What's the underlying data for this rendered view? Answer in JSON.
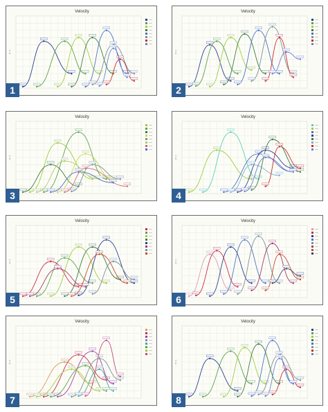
{
  "colors": {
    "badge": "#2f5e92",
    "panel_border": "#6c6c6c",
    "plot_background": "#fbfbf6",
    "grid": "#e5e5dc"
  },
  "charts": [
    {
      "badge": "1",
      "palette": [
        "#2a3f8f",
        "#5aa04a",
        "#9ccc3e",
        "#3b7a3e",
        "#4a6fc2",
        "#7a8f9a",
        "#cc2a2a",
        "#6a7fd0"
      ]
    },
    {
      "badge": "2",
      "palette": [
        "#2a3f8f",
        "#5aa04a",
        "#9ccc3e",
        "#3b7a3e",
        "#4a6fc2",
        "#7a8f9a",
        "#cc2a2a",
        "#6a7fd0"
      ]
    },
    {
      "badge": "3",
      "palette": [
        "#9ccc3e",
        "#5aa04a",
        "#3b7a3e",
        "#c7d94a",
        "#7a8f9a",
        "#b0c96a",
        "#cc6a6a",
        "#4a6fc2"
      ]
    },
    {
      "badge": "4",
      "palette": [
        "#5ad0b0",
        "#9ccc3e",
        "#4a6fc2",
        "#2a3f8f",
        "#3b7a3e",
        "#7ab0d0",
        "#cc2a2a",
        "#6a7fd0"
      ]
    },
    {
      "badge": "5",
      "palette": [
        "#cc2a4a",
        "#5aa04a",
        "#9ccc3e",
        "#3b7a3e",
        "#2a3f8f",
        "#a03a6a",
        "#7a8f9a",
        "#c04a2a"
      ]
    },
    {
      "badge": "6",
      "palette": [
        "#d0a0b0",
        "#cc2a4a",
        "#2a3f8f",
        "#4a6fc2",
        "#7a8f9a",
        "#a03a6a",
        "#c04a2a",
        "#3b3f6a"
      ]
    },
    {
      "badge": "7",
      "palette": [
        "#d0a060",
        "#cc2a4a",
        "#a03aa0",
        "#7a8f9a",
        "#4aa0a0",
        "#5aa04a",
        "#9ccc3e",
        "#c04a7a"
      ]
    },
    {
      "badge": "8",
      "palette": [
        "#2a3f8f",
        "#5aa04a",
        "#9ccc3e",
        "#3b7a3e",
        "#4a6fc2",
        "#7a8f9a",
        "#cc2a2a",
        "#6a7fd0"
      ]
    }
  ],
  "chart_data": [
    {
      "type": "line",
      "title": "Velocity",
      "ylabel": "m / s",
      "ylim": [
        0,
        10
      ],
      "xlim": [
        0,
        18
      ],
      "grid": true,
      "legend_position": "right",
      "series": [
        {
          "values": [
            [
              1,
              0.2
            ],
            [
              4,
              6.5
            ],
            [
              8,
              2
            ]
          ]
        },
        {
          "values": [
            [
              3,
              0.2
            ],
            [
              7,
              6.5
            ],
            [
              10,
              2
            ]
          ]
        },
        {
          "values": [
            [
              6,
              0.2
            ],
            [
              9,
              7
            ],
            [
              12,
              2
            ]
          ]
        },
        {
          "values": [
            [
              8,
              0.2
            ],
            [
              11,
              7
            ],
            [
              14,
              2
            ]
          ]
        },
        {
          "values": [
            [
              10,
              0.2
            ],
            [
              13,
              8
            ],
            [
              16,
              2
            ]
          ]
        },
        {
          "values": [
            [
              11,
              0.5
            ],
            [
              14,
              6
            ],
            [
              17,
              2
            ]
          ]
        },
        {
          "values": [
            [
              13,
              0.5
            ],
            [
              15,
              4
            ],
            [
              17,
              1
            ]
          ]
        },
        {
          "values": [
            [
              12,
              0.3
            ],
            [
              14,
              5.5
            ],
            [
              16,
              1.5
            ]
          ]
        }
      ]
    },
    {
      "type": "line",
      "title": "Velocity",
      "ylabel": "m / s",
      "ylim": [
        0,
        10
      ],
      "xlim": [
        0,
        18
      ],
      "grid": true,
      "legend_position": "right",
      "series": [
        {
          "values": [
            [
              1,
              0.2
            ],
            [
              4,
              6
            ],
            [
              7,
              1
            ]
          ]
        },
        {
          "values": [
            [
              2,
              0.3
            ],
            [
              5,
              6.5
            ],
            [
              8,
              2
            ]
          ]
        },
        {
          "values": [
            [
              4,
              0.2
            ],
            [
              7,
              7
            ],
            [
              10,
              2.5
            ]
          ]
        },
        {
          "values": [
            [
              6,
              0.5
            ],
            [
              9,
              7.5
            ],
            [
              12,
              2
            ]
          ]
        },
        {
          "values": [
            [
              8,
              0.5
            ],
            [
              11,
              8
            ],
            [
              14,
              2
            ]
          ]
        },
        {
          "values": [
            [
              10,
              1
            ],
            [
              13,
              8.5
            ],
            [
              16,
              2
            ]
          ]
        },
        {
          "values": [
            [
              12,
              1
            ],
            [
              14,
              7
            ],
            [
              16,
              1.5
            ]
          ]
        },
        {
          "values": [
            [
              13,
              2
            ],
            [
              15,
              5
            ],
            [
              17,
              4
            ]
          ]
        }
      ]
    },
    {
      "type": "line",
      "title": "Velocity",
      "ylabel": "m / s",
      "ylim": [
        0,
        10
      ],
      "xlim": [
        0,
        18
      ],
      "grid": true,
      "legend_position": "right",
      "series": [
        {
          "values": [
            [
              2,
              0.2
            ],
            [
              6,
              7
            ],
            [
              11,
              2
            ]
          ]
        },
        {
          "values": [
            [
              4,
              0.2
            ],
            [
              9,
              8.5
            ],
            [
              13,
              2
            ]
          ]
        },
        {
          "values": [
            [
              1,
              0.2
            ],
            [
              5,
              4
            ],
            [
              9,
              1
            ]
          ]
        },
        {
          "values": [
            [
              6,
              0.2
            ],
            [
              10,
              5.5
            ],
            [
              14,
              2
            ]
          ]
        },
        {
          "values": [
            [
              8,
              0.3
            ],
            [
              11,
              4
            ],
            [
              15,
              2
            ]
          ]
        },
        {
          "values": [
            [
              3,
              0.2
            ],
            [
              7,
              4.5
            ],
            [
              12,
              2
            ]
          ]
        },
        {
          "values": [
            [
              7,
              0.2
            ],
            [
              10,
              3.5
            ],
            [
              16,
              1
            ]
          ]
        },
        {
          "values": [
            [
              5,
              0.2
            ],
            [
              9,
              3
            ],
            [
              14,
              1.5
            ]
          ]
        }
      ]
    },
    {
      "type": "line",
      "title": "Velocity",
      "ylabel": "m / s",
      "ylim": [
        0,
        10
      ],
      "xlim": [
        0,
        18
      ],
      "grid": true,
      "legend_position": "right",
      "series": [
        {
          "values": [
            [
              3,
              0.2
            ],
            [
              7,
              8.5
            ],
            [
              11,
              2
            ]
          ]
        },
        {
          "values": [
            [
              1,
              0.2
            ],
            [
              5,
              6
            ],
            [
              10,
              2
            ]
          ]
        },
        {
          "values": [
            [
              6,
              0.2
            ],
            [
              11,
              5.5
            ],
            [
              16,
              3
            ]
          ]
        },
        {
          "values": [
            [
              8,
              0.2
            ],
            [
              12,
              6
            ],
            [
              16,
              3.5
            ]
          ]
        },
        {
          "values": [
            [
              10,
              0.5
            ],
            [
              13,
              7.5
            ],
            [
              17,
              3
            ]
          ]
        },
        {
          "values": [
            [
              7,
              0.2
            ],
            [
              10,
              4
            ],
            [
              14,
              2.5
            ]
          ]
        },
        {
          "values": [
            [
              12,
              1
            ],
            [
              14,
              6.5
            ],
            [
              17,
              3.5
            ]
          ]
        },
        {
          "values": [
            [
              9,
              0.3
            ],
            [
              12,
              5
            ],
            [
              16,
              3
            ]
          ]
        }
      ]
    },
    {
      "type": "line",
      "title": "Velocity",
      "ylabel": "m / s",
      "ylim": [
        0,
        10
      ],
      "xlim": [
        0,
        18
      ],
      "grid": true,
      "legend_position": "right",
      "series": [
        {
          "values": [
            [
              1,
              0.2
            ],
            [
              5,
              5
            ],
            [
              9,
              1.5
            ]
          ]
        },
        {
          "values": [
            [
              3,
              0.2
            ],
            [
              7,
              5.5
            ],
            [
              11,
              2
            ]
          ]
        },
        {
          "values": [
            [
              5,
              0.2
            ],
            [
              9,
              7
            ],
            [
              13,
              2
            ]
          ]
        },
        {
          "values": [
            [
              7,
              0.2
            ],
            [
              11,
              7
            ],
            [
              15,
              2.5
            ]
          ]
        },
        {
          "values": [
            [
              9,
              0.3
            ],
            [
              13,
              8
            ],
            [
              17,
              2
            ]
          ]
        },
        {
          "values": [
            [
              2,
              0.2
            ],
            [
              6,
              4
            ],
            [
              10,
              1.5
            ]
          ]
        },
        {
          "values": [
            [
              11,
              0.5
            ],
            [
              14,
              5
            ],
            [
              17,
              2.5
            ]
          ]
        },
        {
          "values": [
            [
              8,
              0.2
            ],
            [
              12,
              6
            ],
            [
              16,
              2
            ]
          ]
        }
      ]
    },
    {
      "type": "line",
      "title": "Velocity",
      "ylabel": "m / s",
      "ylim": [
        0,
        10
      ],
      "xlim": [
        0,
        18
      ],
      "grid": true,
      "legend_position": "right",
      "series": [
        {
          "values": [
            [
              1,
              0.2
            ],
            [
              4,
              6
            ],
            [
              7,
              1
            ]
          ]
        },
        {
          "values": [
            [
              2,
              0.3
            ],
            [
              5,
              6.5
            ],
            [
              8,
              1.5
            ]
          ]
        },
        {
          "values": [
            [
              4,
              0.2
            ],
            [
              7,
              7
            ],
            [
              10,
              2
            ]
          ]
        },
        {
          "values": [
            [
              6,
              0.5
            ],
            [
              9,
              8
            ],
            [
              12,
              2
            ]
          ]
        },
        {
          "values": [
            [
              8,
              0.5
            ],
            [
              11,
              8.5
            ],
            [
              14,
              2
            ]
          ]
        },
        {
          "values": [
            [
              10,
              1
            ],
            [
              13,
              7.5
            ],
            [
              16,
              2
            ]
          ]
        },
        {
          "values": [
            [
              12,
              1
            ],
            [
              14,
              6
            ],
            [
              17,
              2.5
            ]
          ]
        },
        {
          "values": [
            [
              13,
              2
            ],
            [
              15,
              4
            ],
            [
              17,
              3
            ]
          ]
        }
      ]
    },
    {
      "type": "line",
      "title": "Velocity",
      "ylabel": "m / s",
      "ylim": [
        0,
        10
      ],
      "xlim": [
        0,
        18
      ],
      "grid": true,
      "legend_position": "right",
      "series": [
        {
          "values": [
            [
              2,
              0.2
            ],
            [
              7,
              5
            ],
            [
              11,
              2
            ]
          ]
        },
        {
          "values": [
            [
              4,
              0.2
            ],
            [
              9,
              6
            ],
            [
              13,
              2.5
            ]
          ]
        },
        {
          "values": [
            [
              6,
              0.2
            ],
            [
              11,
              6.5
            ],
            [
              14,
              2
            ]
          ]
        },
        {
          "values": [
            [
              8,
              0.2
            ],
            [
              12,
              5.5
            ],
            [
              15,
              2.5
            ]
          ]
        },
        {
          "values": [
            [
              9,
              0.3
            ],
            [
              12,
              4
            ],
            [
              14,
              1
            ]
          ]
        },
        {
          "values": [
            [
              5,
              0.2
            ],
            [
              10,
              4.5
            ],
            [
              13,
              1
            ]
          ]
        },
        {
          "values": [
            [
              3,
              0.2
            ],
            [
              8,
              4
            ],
            [
              12,
              1
            ]
          ]
        },
        {
          "values": [
            [
              10,
              0.3
            ],
            [
              13,
              8
            ],
            [
              15,
              3
            ]
          ]
        }
      ]
    },
    {
      "type": "line",
      "title": "Velocity",
      "ylabel": "m / s",
      "ylim": [
        0,
        10
      ],
      "xlim": [
        0,
        18
      ],
      "grid": true,
      "legend_position": "right",
      "series": [
        {
          "values": [
            [
              1,
              0.2
            ],
            [
              4,
              5.5
            ],
            [
              8,
              1
            ]
          ]
        },
        {
          "values": [
            [
              3,
              0.2
            ],
            [
              7,
              6.5
            ],
            [
              10,
              2
            ]
          ]
        },
        {
          "values": [
            [
              6,
              0.2
            ],
            [
              9,
              7
            ],
            [
              12,
              2
            ]
          ]
        },
        {
          "values": [
            [
              8,
              0.2
            ],
            [
              11,
              7.5
            ],
            [
              14,
              2
            ]
          ]
        },
        {
          "values": [
            [
              10,
              0.3
            ],
            [
              13,
              8
            ],
            [
              16,
              2
            ]
          ]
        },
        {
          "values": [
            [
              11,
              0.5
            ],
            [
              14,
              6
            ],
            [
              17,
              2.5
            ]
          ]
        },
        {
          "values": [
            [
              13,
              0.5
            ],
            [
              15,
              4
            ],
            [
              17,
              1.5
            ]
          ]
        },
        {
          "values": [
            [
              12,
              0.3
            ],
            [
              14,
              5.5
            ],
            [
              16,
              2
            ]
          ]
        }
      ]
    }
  ]
}
